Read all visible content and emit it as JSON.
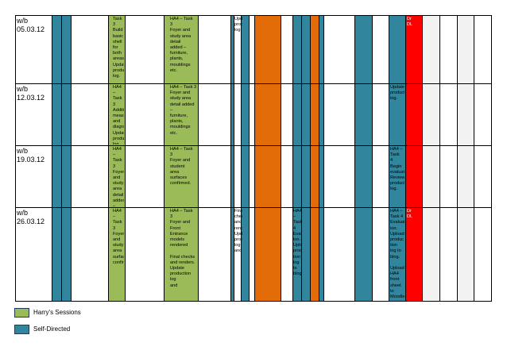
{
  "colors": {
    "green": "#9bbb59",
    "teal": "#31859c",
    "orange": "#e36c09",
    "red": "#ff0000",
    "grey": "#f2f2f2",
    "white": "#ffffff"
  },
  "columns": [
    "white",
    "teal",
    "teal",
    "white",
    "green",
    "white",
    "green",
    "white",
    "teal",
    "white",
    "teal",
    "white",
    "orange",
    "white",
    "teal",
    "teal",
    "orange",
    "teal",
    "white",
    "teal",
    "white",
    "teal",
    "red",
    "grey",
    "white",
    "grey",
    "white"
  ],
  "weeks": [
    {
      "label": "w/b\n05.03.12",
      "cells": [
        {
          "col": 4,
          "text": "Task 3\nBuild basic\nshell for\nboth areas.\nUpdate\nproduction\nlog."
        },
        {
          "col": 6,
          "text": "HA4 – Task\n3\nFoyer and\nstudy area\ndetail\nadded –\nfurniture,\nplants,\nmouldings\netc."
        },
        {
          "col": 8,
          "text": "Update\nproduction\nlog."
        },
        {
          "col": 22,
          "text": "Dr\nDL"
        }
      ]
    },
    {
      "label": "w/b\n12.03.12",
      "cells": [
        {
          "col": 4,
          "text": "HA4 – Task\n3\nAdditional\nmeasuring\nand\ndiagrams.\nUpdate\nproduction\nlog."
        },
        {
          "col": 6,
          "text": "HA4 – Task 3\nFoyer and\nstudy area\ndetail added –\nfurniture,\nplants,\nmouldings etc."
        },
        {
          "col": 21,
          "text": "Update\nproduction log."
        }
      ]
    },
    {
      "label": "w/b\n19.03.12",
      "cells": [
        {
          "col": 4,
          "text": "HA4 – Task 3\nFoyer and study\narea detail\nadded –\nfurniture,\nplants,\nmouldings etc."
        },
        {
          "col": 6,
          "text": "HA4 – Task\n3\nFoyer and\nstudent\narea\nsurfaces\nconfirmed."
        },
        {
          "col": 21,
          "text": "HA4 – Task\n4\nBegin\nevaluation.\nReview\nproduction\nlog."
        }
      ]
    },
    {
      "label": "w/b\n26.03.12",
      "cells": [
        {
          "col": 4,
          "text": "HA4 – Task\n3\nFoyer and\nstudy area\nsurfaces\nconfirmed."
        },
        {
          "col": 6,
          "text": "HA4 – Task\n3\nFoyer and\nFront\nEntrance\nmodels\nrendered\n\nFinal checks\nand renders.\nUpdate\nproduction log\nand"
        },
        {
          "col": 8,
          "text": "Final\nchecks and\nrenders.\nUpdate\nproduction\nlog and"
        },
        {
          "col": 14,
          "text": "HA4 –\nTask 4\nEvaluat\nion.\nUpload\nproduc\ntion\nlog to\nblog."
        },
        {
          "col": 21,
          "text": "HA4 –\nTask 4\nEvaluat\nion.\nUpload\nproduc\ntion\nlog to\nblog.\n\nUpload\nHA4\nfront\nsheet to\nMoodle."
        },
        {
          "col": 22,
          "text": "Dr\nDL"
        }
      ]
    }
  ],
  "legend": [
    {
      "label": "Harry's Sessions",
      "color": "#9bbb59"
    },
    {
      "label": "Self-Directed",
      "color": "#31859c"
    }
  ]
}
